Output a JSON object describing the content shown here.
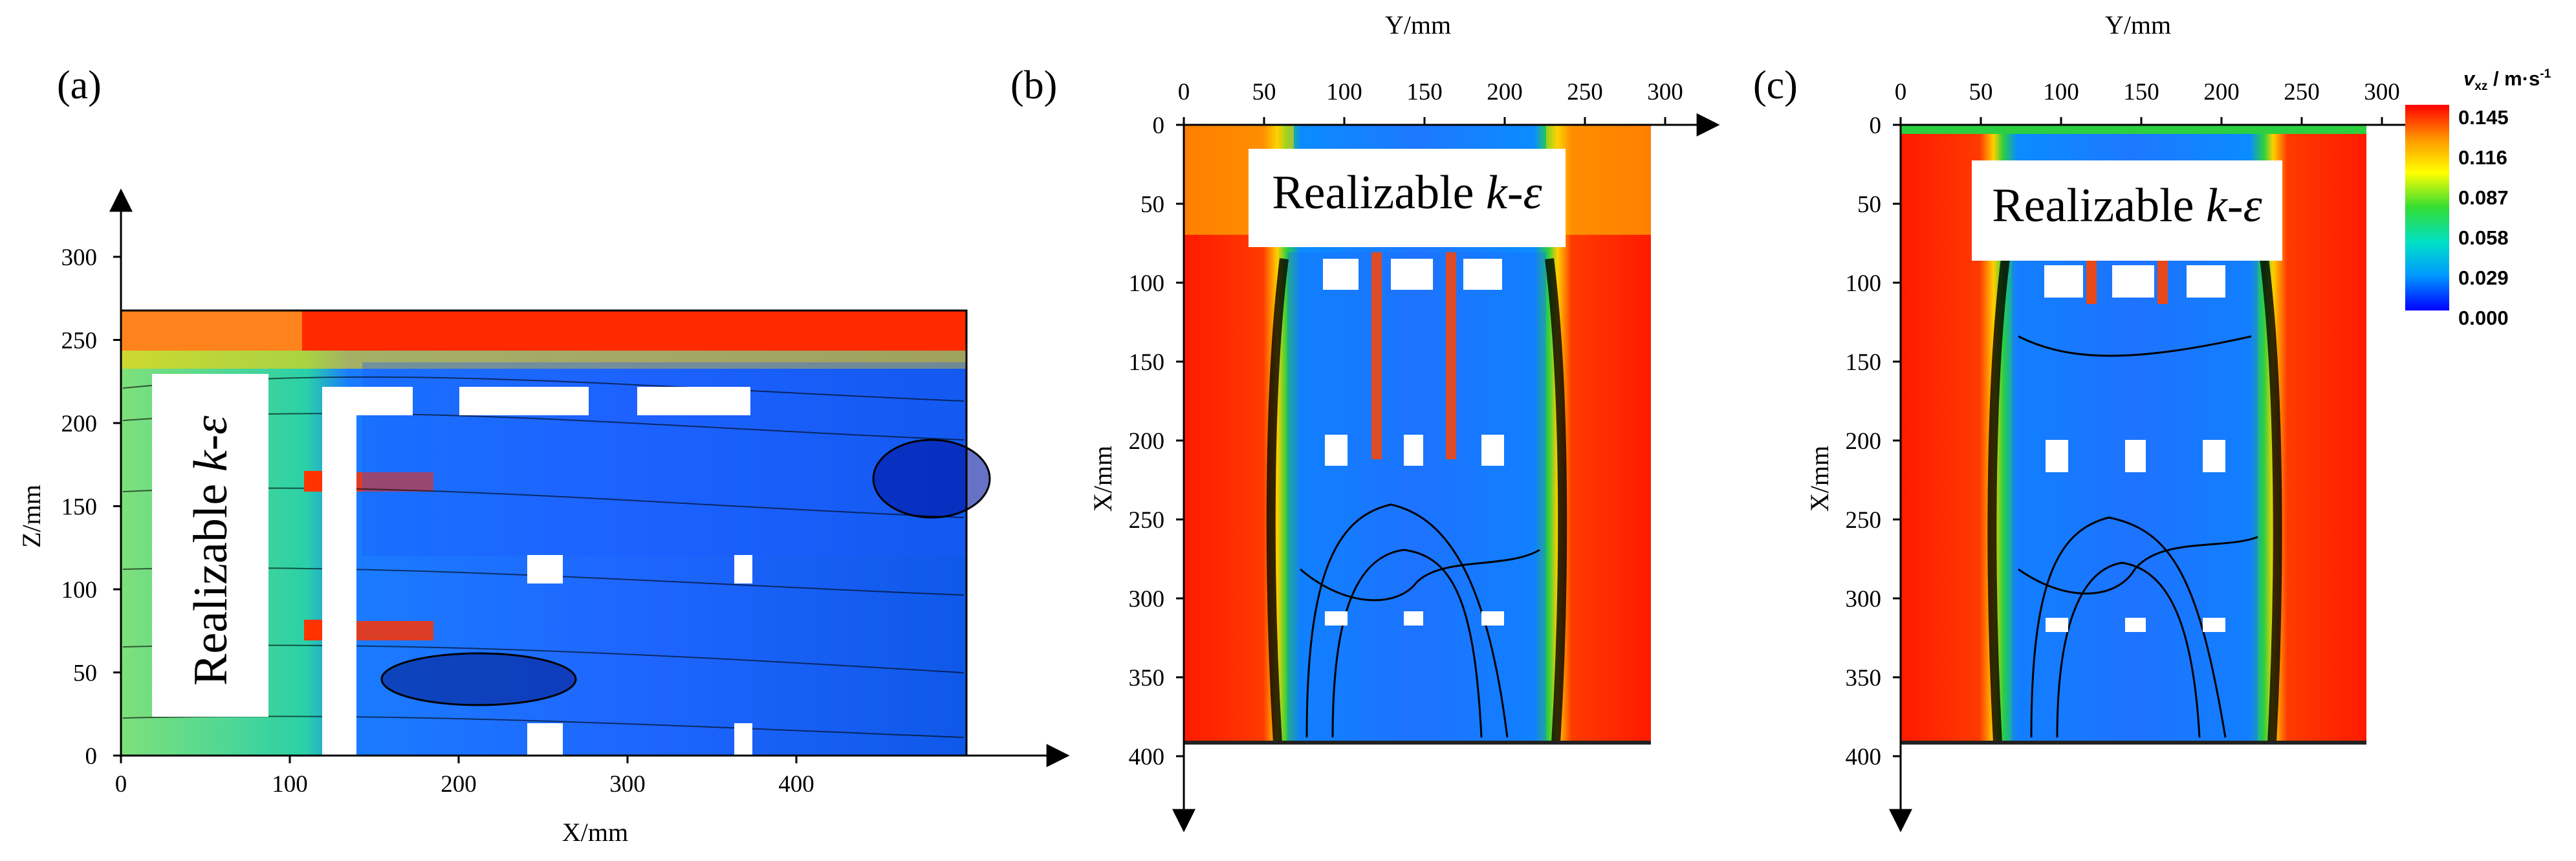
{
  "colorbar": {
    "title_symbol": "v",
    "title_subscript": "xz",
    "title_unit": " / m·s",
    "title_exp": "-1",
    "ticks": [
      "0.145",
      "0.116",
      "0.087",
      "0.058",
      "0.029",
      "0.000"
    ],
    "colors": [
      "#0000ff",
      "#0099ff",
      "#00e0c8",
      "#33dd33",
      "#ffff00",
      "#ff9900",
      "#ff0000"
    ]
  },
  "panels": {
    "a": {
      "label": "(a)",
      "model_text": "Realizable ",
      "model_k": "k",
      "model_dash": "-",
      "model_eps": "ε",
      "x_axis_label": "X/mm",
      "y_axis_label": "Z/mm",
      "x_ticks": [
        "0",
        "100",
        "200",
        "300",
        "400"
      ],
      "y_ticks": [
        "0",
        "50",
        "100",
        "150",
        "200",
        "250",
        "300"
      ]
    },
    "b": {
      "label": "(b)",
      "model_text": "Realizable ",
      "model_k": "k",
      "model_dash": "-",
      "model_eps": "ε",
      "x_axis_label": "Y/mm",
      "y_axis_label": "X/mm",
      "x_ticks": [
        "0",
        "50",
        "100",
        "150",
        "200",
        "250",
        "300"
      ],
      "y_ticks": [
        "0",
        "50",
        "100",
        "150",
        "200",
        "250",
        "300",
        "350",
        "400"
      ]
    },
    "c": {
      "label": "(c)",
      "model_text": "Realizable ",
      "model_k": "k",
      "model_dash": "-",
      "model_eps": "ε",
      "x_axis_label": "Y/mm",
      "y_axis_label": "X/mm",
      "x_ticks": [
        "0",
        "50",
        "100",
        "150",
        "200",
        "250",
        "300"
      ],
      "y_ticks": [
        "0",
        "50",
        "100",
        "150",
        "200",
        "250",
        "300",
        "350",
        "400"
      ]
    }
  }
}
